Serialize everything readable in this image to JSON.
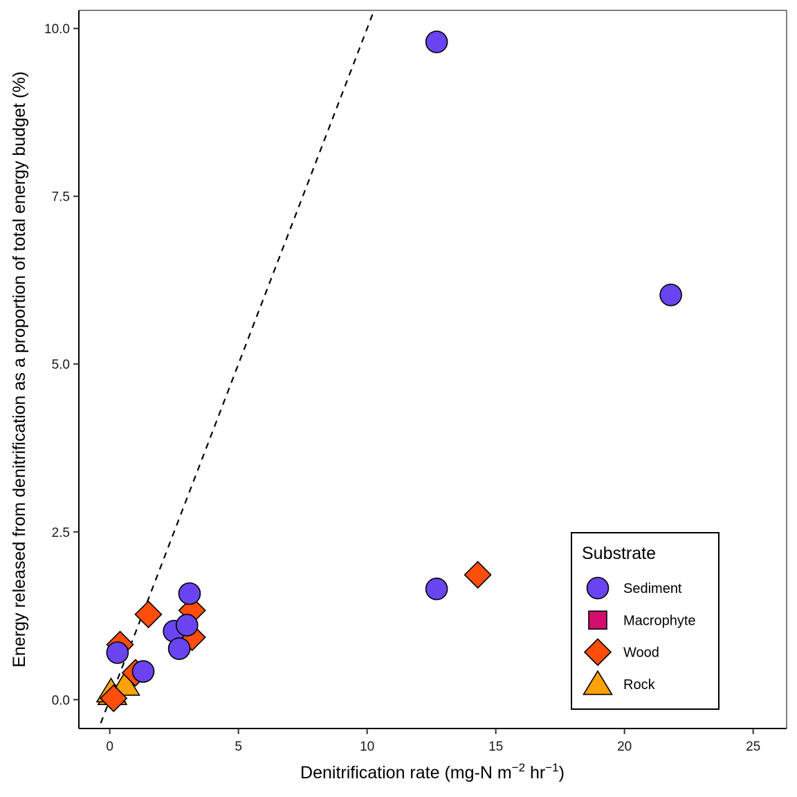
{
  "chart_data": {
    "type": "scatter",
    "xlabel": "Denitrification rate (mg-N m",
    "xlabel_sup1": "−2",
    "xlabel_mid": " hr",
    "xlabel_sup2": "−1",
    "xlabel_end": ")",
    "ylabel": "Energy released from denitrification as a proportion of total energy budget (%)",
    "xlim": [
      -1.2,
      26.3
    ],
    "ylim": [
      -0.43,
      10.27
    ],
    "xticks": [
      0,
      5,
      10,
      15,
      20,
      25
    ],
    "xtick_labels": [
      "0",
      "5",
      "10",
      "15",
      "20",
      "25"
    ],
    "yticks": [
      0,
      2.5,
      5,
      7.5,
      10
    ],
    "ytick_labels": [
      "0.0",
      "2.5",
      "5.0",
      "7.5",
      "10.0"
    ],
    "grid": false,
    "reference_line": {
      "style": "dashed",
      "points": [
        [
          -0.35,
          -0.35
        ],
        [
          10.3,
          10.3
        ]
      ]
    },
    "legend": {
      "title": "Substrate",
      "placement": "bottom-right",
      "entries": [
        {
          "name": "Sediment",
          "shape": "circle",
          "color": "#6a44f0"
        },
        {
          "name": "Macrophyte",
          "shape": "square",
          "color": "#d20f6e"
        },
        {
          "name": "Wood",
          "shape": "diamond",
          "color": "#ff4d0a"
        },
        {
          "name": "Rock",
          "shape": "triangle",
          "color": "#ffa20a"
        }
      ]
    },
    "series": [
      {
        "name": "Sediment",
        "shape": "circle",
        "color": "#6a44f0",
        "points": [
          [
            12.7,
            9.8
          ],
          [
            21.8,
            6.03
          ],
          [
            12.7,
            1.65
          ],
          [
            3.1,
            1.58
          ],
          [
            2.5,
            1.02
          ],
          [
            3.0,
            1.11
          ],
          [
            2.7,
            0.76
          ],
          [
            1.3,
            0.42
          ],
          [
            0.3,
            0.7
          ]
        ]
      },
      {
        "name": "Macrophyte",
        "shape": "square",
        "color": "#d20f6e",
        "points": []
      },
      {
        "name": "Wood",
        "shape": "diamond",
        "color": "#ff4d0a",
        "points": [
          [
            14.3,
            1.86
          ],
          [
            1.5,
            1.27
          ],
          [
            3.2,
            1.33
          ],
          [
            3.2,
            0.93
          ],
          [
            0.4,
            0.82
          ],
          [
            1.0,
            0.4
          ],
          [
            0.15,
            0.02
          ]
        ]
      },
      {
        "name": "Rock",
        "shape": "triangle",
        "color": "#ffa20a",
        "points": [
          [
            0.6,
            0.22
          ],
          [
            0.1,
            0.08
          ],
          [
            0.05,
            0.12
          ]
        ]
      }
    ]
  }
}
